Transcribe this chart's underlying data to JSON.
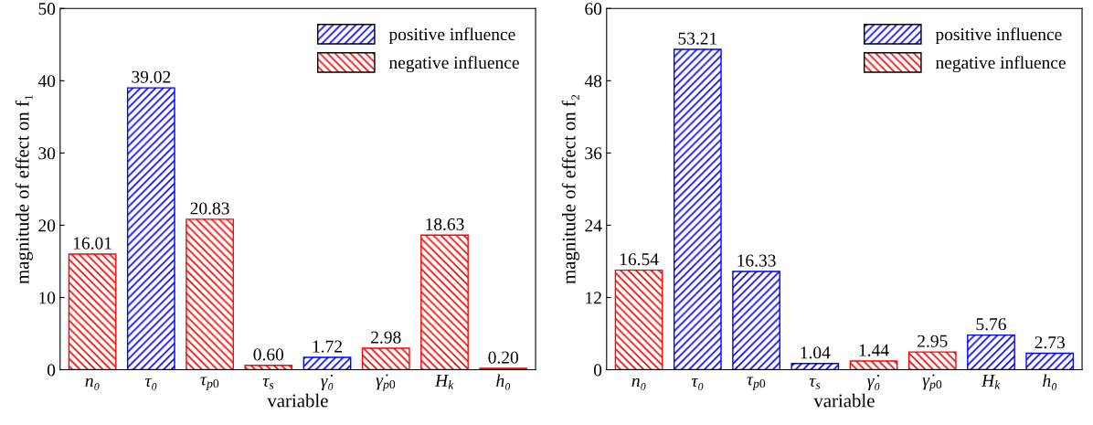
{
  "chart_data": [
    {
      "type": "bar",
      "xlabel": "variable",
      "ylabel": "magnitude of effect on f₁",
      "categories": [
        "n₀",
        "τ₀",
        "τ$_{p0}$",
        "τ$_{s}$",
        "γ̇₀",
        "γ̇$_{p0}$",
        "H$_{k}$",
        "h₀"
      ],
      "ylim": [
        0,
        50
      ],
      "yticks": [
        0,
        10,
        20,
        30,
        40,
        50
      ],
      "legend": "top right",
      "grid": false,
      "series": [
        {
          "name": "positive influence",
          "color": "#0000ff",
          "values": [
            null,
            39.02,
            null,
            null,
            1.72,
            null,
            null,
            null
          ],
          "value_labels": [
            null,
            "39.02",
            null,
            null,
            "1.72",
            null,
            null,
            null
          ]
        },
        {
          "name": "negative influence",
          "color": "#ff0000",
          "values": [
            16.01,
            null,
            20.83,
            0.6,
            null,
            2.98,
            18.63,
            0.2
          ],
          "value_labels": [
            "16.01",
            null,
            "20.83",
            "0.60",
            null,
            "2.98",
            "18.63",
            "0.20"
          ]
        }
      ]
    },
    {
      "type": "bar",
      "xlabel": "variable",
      "ylabel": "magnitude of effect on f₂",
      "categories": [
        "n₀",
        "τ₀",
        "τ$_{p0}$",
        "τ$_{s}$",
        "γ̇₀",
        "γ̇$_{p0}$",
        "H$_{k}$",
        "h₀"
      ],
      "ylim": [
        0,
        60
      ],
      "yticks": [
        0,
        12,
        24,
        36,
        48,
        60
      ],
      "legend": "top right",
      "grid": false,
      "series": [
        {
          "name": "positive influence",
          "color": "#0000ff",
          "values": [
            null,
            53.21,
            16.33,
            1.04,
            null,
            null,
            5.76,
            2.73
          ],
          "value_labels": [
            null,
            "53.21",
            "16.33",
            "1.04",
            null,
            null,
            "5.76",
            "2.73"
          ]
        },
        {
          "name": "negative influence",
          "color": "#ff0000",
          "values": [
            16.54,
            null,
            null,
            null,
            1.44,
            2.95,
            null,
            null
          ],
          "value_labels": [
            "16.54",
            null,
            null,
            null,
            "1.44",
            "2.95",
            null,
            null
          ]
        }
      ]
    }
  ]
}
